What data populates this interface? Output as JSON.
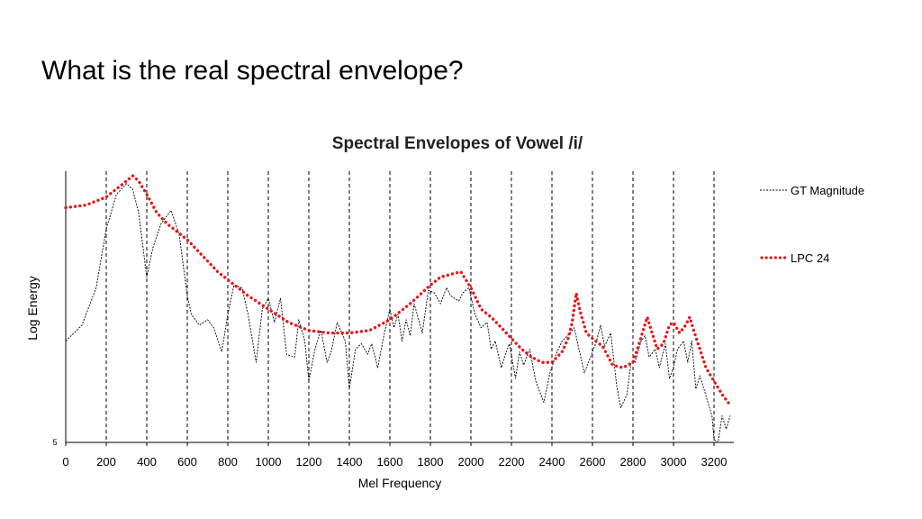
{
  "slide": {
    "title": "What is the real spectral envelope?"
  },
  "colors": {
    "gt": "#000000",
    "lpc": "#e41a1c",
    "gridline": "#000000"
  },
  "chart_data": {
    "type": "line",
    "title": "Spectral Envelopes of Vowel /i/",
    "xlabel": "Mel Frequency",
    "ylabel": "Log Energy",
    "y_corner_label": "5",
    "xlim": [
      0,
      3300
    ],
    "ylim": [
      0,
      100
    ],
    "xticks": [
      0,
      200,
      400,
      600,
      800,
      1000,
      1200,
      1400,
      1600,
      1800,
      2000,
      2200,
      2400,
      2600,
      2800,
      3000,
      3200
    ],
    "vertical_gridlines": [
      200,
      400,
      600,
      800,
      1000,
      1200,
      1400,
      1600,
      1800,
      2000,
      2200,
      2400,
      2600,
      2800,
      3000,
      3200
    ],
    "grid_style": "vertical dashed",
    "legend_position": "right",
    "series": [
      {
        "name": "GT Magnitude",
        "style": "dashed",
        "x": [
          0,
          80,
          150,
          200,
          250,
          300,
          330,
          360,
          400,
          430,
          470,
          520,
          560,
          600,
          620,
          660,
          700,
          730,
          770,
          800,
          830,
          870,
          900,
          940,
          970,
          1000,
          1030,
          1060,
          1090,
          1130,
          1150,
          1180,
          1200,
          1230,
          1260,
          1290,
          1310,
          1340,
          1380,
          1400,
          1430,
          1460,
          1490,
          1510,
          1540,
          1570,
          1600,
          1620,
          1640,
          1660,
          1680,
          1700,
          1720,
          1760,
          1790,
          1820,
          1850,
          1880,
          1900,
          1940,
          1960,
          1990,
          2020,
          2050,
          2080,
          2100,
          2120,
          2150,
          2170,
          2190,
          2220,
          2240,
          2260,
          2290,
          2320,
          2360,
          2390,
          2420,
          2450,
          2490,
          2510,
          2530,
          2560,
          2590,
          2620,
          2640,
          2660,
          2690,
          2720,
          2740,
          2770,
          2790,
          2810,
          2840,
          2860,
          2880,
          2910,
          2930,
          2960,
          2980,
          3000,
          3020,
          3050,
          3070,
          3090,
          3110,
          3130,
          3150,
          3170,
          3190,
          3200,
          3220,
          3240,
          3260,
          3280
        ],
        "y": [
          38,
          44,
          58,
          80,
          93,
          97,
          95,
          86,
          62,
          73,
          82,
          87,
          78,
          55,
          48,
          44,
          46,
          43,
          34,
          48,
          59,
          58,
          48,
          30,
          50,
          54,
          45,
          54,
          33,
          32,
          46,
          38,
          23,
          35,
          42,
          30,
          34,
          45,
          38,
          20,
          35,
          37,
          33,
          37,
          28,
          40,
          50,
          43,
          48,
          38,
          46,
          40,
          52,
          41,
          57,
          56,
          52,
          58,
          55,
          53,
          56,
          58,
          48,
          43,
          45,
          35,
          38,
          28,
          33,
          37,
          24,
          34,
          29,
          35,
          23,
          15,
          26,
          33,
          38,
          41,
          43,
          36,
          26,
          32,
          38,
          44,
          36,
          41,
          21,
          13,
          18,
          30,
          30,
          38,
          40,
          32,
          35,
          28,
          37,
          24,
          28,
          35,
          38,
          30,
          38,
          20,
          25,
          20,
          15,
          10,
          1,
          0,
          10,
          5,
          10
        ]
      },
      {
        "name": "LPC 24",
        "style": "dotted",
        "x": [
          0,
          100,
          200,
          250,
          300,
          330,
          360,
          400,
          450,
          500,
          550,
          600,
          650,
          700,
          750,
          800,
          900,
          1000,
          1100,
          1200,
          1300,
          1400,
          1500,
          1600,
          1700,
          1800,
          1850,
          1900,
          1950,
          2000,
          2050,
          2100,
          2150,
          2200,
          2250,
          2300,
          2350,
          2400,
          2450,
          2480,
          2500,
          2520,
          2540,
          2570,
          2600,
          2650,
          2700,
          2750,
          2800,
          2830,
          2850,
          2870,
          2890,
          2920,
          2950,
          2980,
          3000,
          3030,
          3060,
          3080,
          3100,
          3130,
          3160,
          3200,
          3240,
          3280
        ],
        "y": [
          88,
          89,
          92,
          95,
          98,
          100,
          98,
          93,
          86,
          82,
          79,
          76,
          72,
          68,
          64,
          61,
          55,
          50,
          45,
          42,
          41,
          41,
          42,
          46,
          52,
          59,
          62,
          63,
          64,
          58,
          50,
          47,
          43,
          39,
          35,
          32,
          30,
          30,
          34,
          39,
          45,
          56,
          49,
          41,
          39,
          36,
          29,
          28,
          30,
          37,
          42,
          47,
          42,
          35,
          37,
          44,
          45,
          41,
          44,
          47,
          42,
          35,
          28,
          23,
          18,
          14
        ]
      }
    ]
  }
}
